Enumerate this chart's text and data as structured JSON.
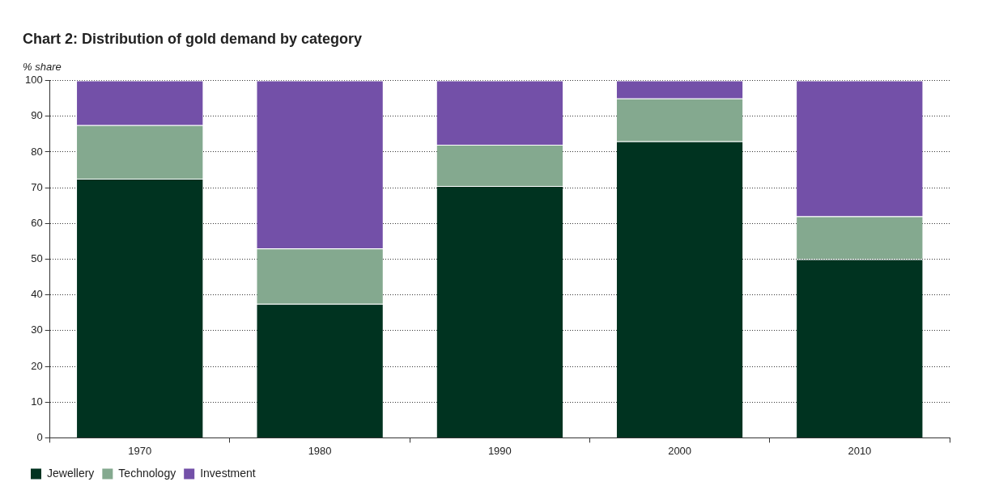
{
  "chart_data": {
    "type": "bar",
    "title": "Chart 2: Distribution of gold demand by category",
    "ylabel": "% share",
    "categories": [
      "1970",
      "1980",
      "1990",
      "2000",
      "2010"
    ],
    "stacked": true,
    "ylim": [
      0,
      100
    ],
    "yticks": [
      0,
      10,
      20,
      30,
      40,
      50,
      60,
      70,
      80,
      90,
      100
    ],
    "grid": "y",
    "legend": "bottom left",
    "series": [
      {
        "name": "Jewellery",
        "color": "#003320",
        "values": [
          72.5,
          37.5,
          70.5,
          83,
          50
        ]
      },
      {
        "name": "Technology",
        "color": "#84a98f",
        "values": [
          15,
          15.5,
          11.5,
          12,
          12
        ]
      },
      {
        "name": "Investment",
        "color": "#7350a8",
        "values": [
          12.5,
          47,
          18,
          5,
          38
        ]
      }
    ]
  }
}
